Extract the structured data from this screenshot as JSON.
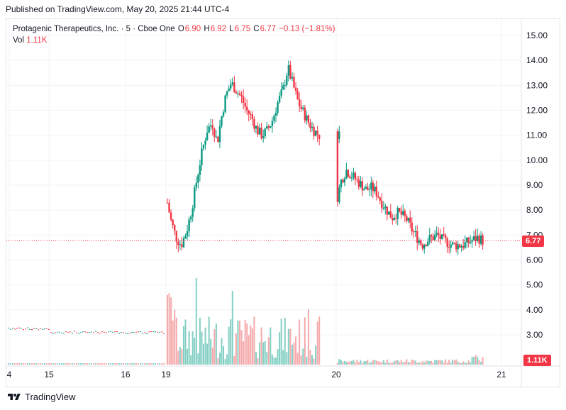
{
  "header": {
    "published": "Published on TradingView.com, May 20, 2025 21:44 UTC-4"
  },
  "legend": {
    "symbol": "Protagenic Therapeutics, Inc. · 5 · Cboe One",
    "o_label": "O",
    "o": "6.90",
    "h_label": "H",
    "h": "6.92",
    "l_label": "L",
    "l": "6.75",
    "c_label": "C",
    "c": "6.77",
    "change": "−0.13 (−1.81%)",
    "vol_label": "Vol",
    "vol": "1.11K"
  },
  "footer": {
    "brand": "TradingView"
  },
  "colors": {
    "up": "#089981",
    "down": "#f23645",
    "up_vol": "#83cfc4",
    "down_vol": "#f5a9ab",
    "grid": "#f0f3fa"
  },
  "chart_data": {
    "type": "candlestick",
    "y_ticks": [
      "15.00",
      "14.00",
      "13.00",
      "12.00",
      "11.00",
      "10.00",
      "9.00",
      "8.00",
      "7.00",
      "6.00",
      "5.00",
      "4.00",
      "3.00"
    ],
    "ylim": [
      2.3,
      15.6
    ],
    "x_ticks": [
      "4",
      "15",
      "16",
      "19",
      "20",
      "21"
    ],
    "last_price": "6.77",
    "last_volume": "1.11K",
    "price_path": [
      {
        "t": 0.0,
        "p": 8.3
      },
      {
        "t": 0.02,
        "p": 7.6
      },
      {
        "t": 0.05,
        "p": 6.9
      },
      {
        "t": 0.08,
        "p": 6.6
      },
      {
        "t": 0.11,
        "p": 7.1
      },
      {
        "t": 0.14,
        "p": 8.0
      },
      {
        "t": 0.17,
        "p": 9.2
      },
      {
        "t": 0.2,
        "p": 10.3
      },
      {
        "t": 0.23,
        "p": 11.2
      },
      {
        "t": 0.26,
        "p": 11.5
      },
      {
        "t": 0.29,
        "p": 10.7
      },
      {
        "t": 0.31,
        "p": 11.6
      },
      {
        "t": 0.34,
        "p": 12.6
      },
      {
        "t": 0.37,
        "p": 13.1
      },
      {
        "t": 0.4,
        "p": 12.8
      },
      {
        "t": 0.43,
        "p": 12.5
      },
      {
        "t": 0.46,
        "p": 12.0
      },
      {
        "t": 0.49,
        "p": 11.7
      },
      {
        "t": 0.52,
        "p": 11.2
      },
      {
        "t": 0.55,
        "p": 11.0
      },
      {
        "t": 0.58,
        "p": 11.2
      },
      {
        "t": 0.61,
        "p": 11.6
      },
      {
        "t": 0.64,
        "p": 12.3
      },
      {
        "t": 0.67,
        "p": 12.8
      },
      {
        "t": 0.7,
        "p": 13.7
      },
      {
        "t": 0.73,
        "p": 13.0
      },
      {
        "t": 0.76,
        "p": 12.3
      },
      {
        "t": 0.79,
        "p": 11.9
      },
      {
        "t": 0.82,
        "p": 11.5
      },
      {
        "t": 0.85,
        "p": 11.2
      },
      {
        "t": 0.88,
        "p": 11.0
      },
      {
        "t": 1.0,
        "p": 8.3
      },
      {
        "t": 1.03,
        "p": 9.2
      },
      {
        "t": 1.06,
        "p": 9.6
      },
      {
        "t": 1.09,
        "p": 9.4
      },
      {
        "t": 1.12,
        "p": 9.2
      },
      {
        "t": 1.15,
        "p": 9.0
      },
      {
        "t": 1.18,
        "p": 8.8
      },
      {
        "t": 1.21,
        "p": 8.9
      },
      {
        "t": 1.24,
        "p": 8.7
      },
      {
        "t": 1.27,
        "p": 8.3
      },
      {
        "t": 1.3,
        "p": 8.0
      },
      {
        "t": 1.33,
        "p": 7.7
      },
      {
        "t": 1.36,
        "p": 7.9
      },
      {
        "t": 1.39,
        "p": 7.8
      },
      {
        "t": 1.42,
        "p": 7.6
      },
      {
        "t": 1.45,
        "p": 7.2
      },
      {
        "t": 1.48,
        "p": 6.9
      },
      {
        "t": 1.51,
        "p": 6.6
      },
      {
        "t": 1.54,
        "p": 6.8
      },
      {
        "t": 1.57,
        "p": 6.9
      },
      {
        "t": 1.6,
        "p": 7.0
      },
      {
        "t": 1.63,
        "p": 6.8
      },
      {
        "t": 1.66,
        "p": 6.7
      },
      {
        "t": 1.69,
        "p": 6.6
      },
      {
        "t": 1.72,
        "p": 6.6
      },
      {
        "t": 1.75,
        "p": 6.6
      },
      {
        "t": 1.78,
        "p": 6.7
      },
      {
        "t": 1.81,
        "p": 6.8
      },
      {
        "t": 1.84,
        "p": 6.9
      },
      {
        "t": 1.87,
        "p": 6.77
      }
    ]
  }
}
